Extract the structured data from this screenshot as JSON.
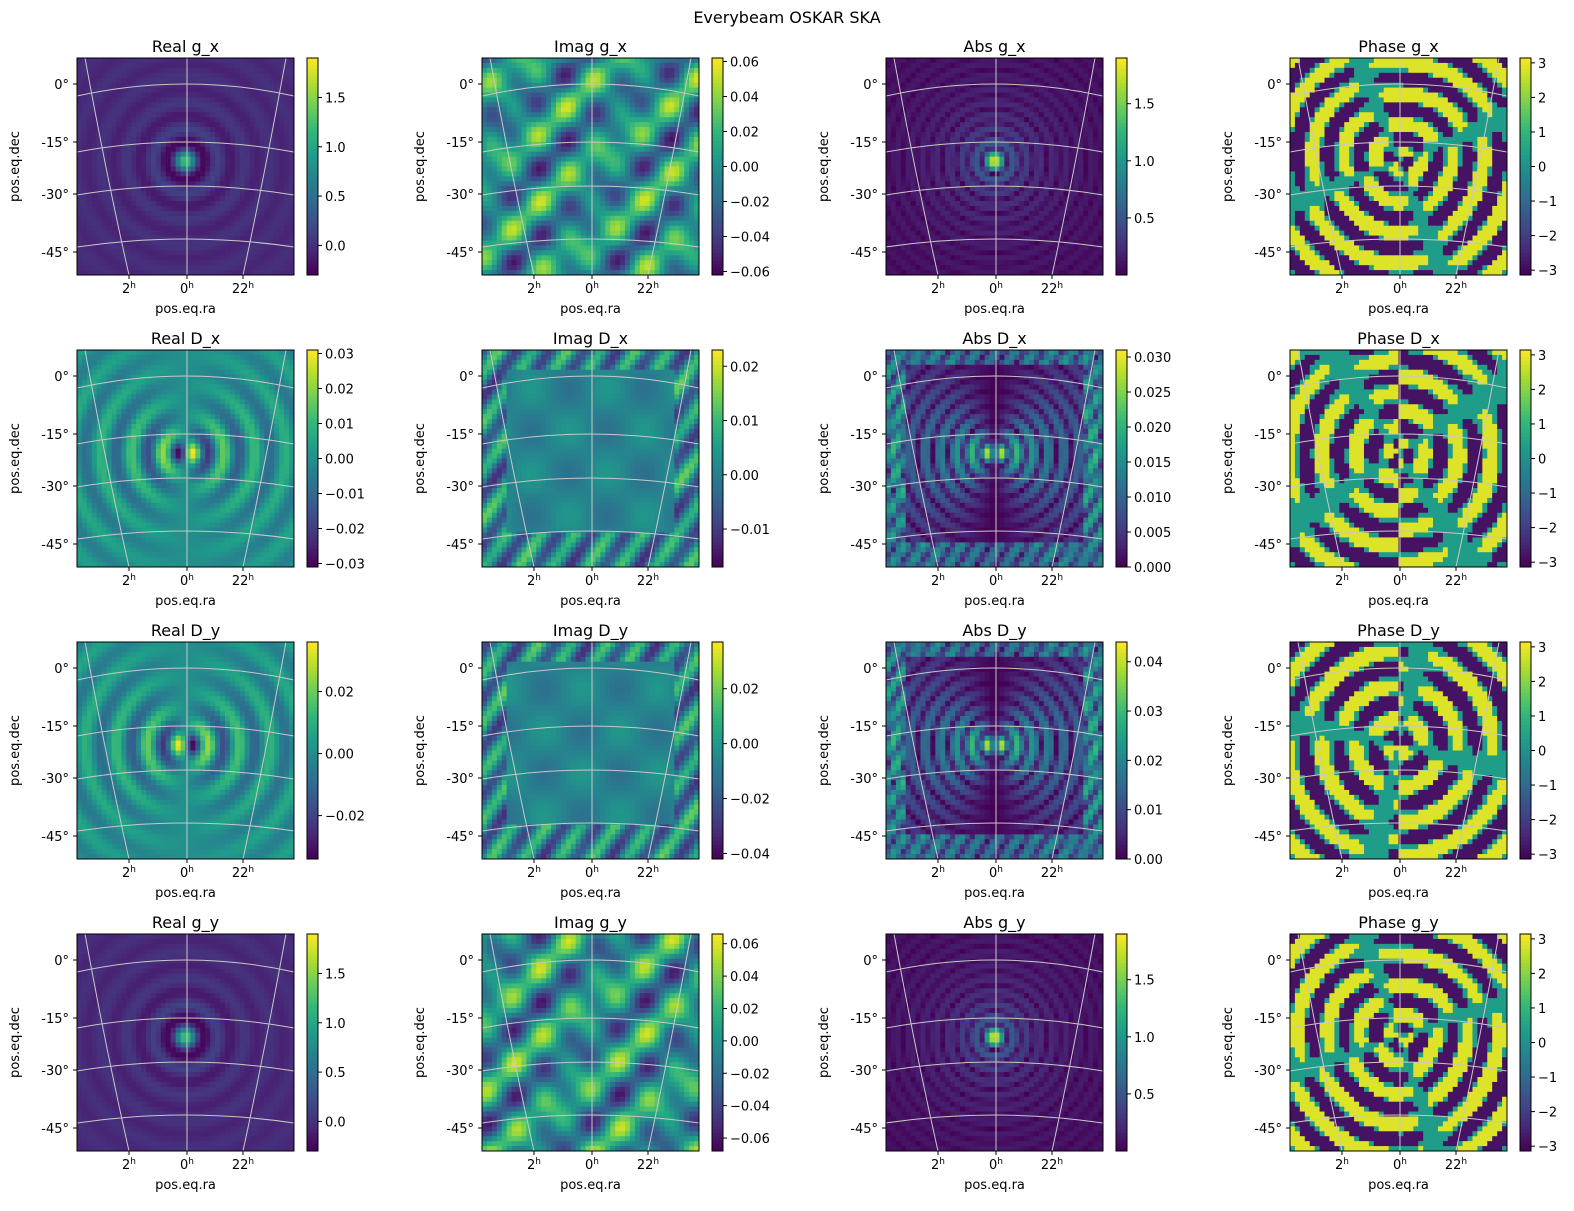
{
  "figure": {
    "title": "Everybeam OSKAR SKA"
  },
  "colormap": [
    "#440154",
    "#482878",
    "#3e4a89",
    "#31688e",
    "#26828e",
    "#1f9e89",
    "#35b779",
    "#6ece58",
    "#b5de2b",
    "#fde725"
  ],
  "chart_data": [
    {
      "type": "heatmap",
      "title": "Real g_x",
      "xlabel": "pos.eq.ra",
      "ylabel": "pos.eq.dec",
      "xticks": [
        "2",
        "0",
        "22"
      ],
      "xtick_unit": "h",
      "yticks": [
        "0°",
        "-15°",
        "-30°",
        "-45°"
      ],
      "cbar_ticks": [
        1.5,
        1.0,
        0.5,
        0.0
      ],
      "cbar_range": [
        -0.3,
        1.9
      ],
      "pattern": "main-lobe"
    },
    {
      "type": "heatmap",
      "title": "Imag g_x",
      "xlabel": "pos.eq.ra",
      "ylabel": "pos.eq.dec",
      "xticks": [
        "2",
        "0",
        "22"
      ],
      "xtick_unit": "h",
      "yticks": [
        "0°",
        "-15°",
        "-30°",
        "-45°"
      ],
      "cbar_ticks": [
        0.06,
        0.04,
        0.02,
        0.0,
        -0.02,
        -0.04,
        -0.06
      ],
      "cbar_range": [
        -0.062,
        0.062
      ],
      "pattern": "blobs"
    },
    {
      "type": "heatmap",
      "title": "Abs g_x",
      "xlabel": "pos.eq.ra",
      "ylabel": "pos.eq.dec",
      "xticks": [
        "2",
        "0",
        "22"
      ],
      "xtick_unit": "h",
      "yticks": [
        "0°",
        "-15°",
        "-30°",
        "-45°"
      ],
      "cbar_ticks": [
        1.5,
        1.0,
        0.5
      ],
      "cbar_range": [
        0.0,
        1.9
      ],
      "pattern": "abs-lobe"
    },
    {
      "type": "heatmap",
      "title": "Phase g_x",
      "xlabel": "pos.eq.ra",
      "ylabel": "pos.eq.dec",
      "xticks": [
        "2",
        "0",
        "22"
      ],
      "xtick_unit": "h",
      "yticks": [
        "0°",
        "-15°",
        "-30°",
        "-45°"
      ],
      "cbar_ticks": [
        3,
        2,
        1,
        0,
        -1,
        -2,
        -3
      ],
      "cbar_range": [
        -3.14,
        3.14
      ],
      "pattern": "phase"
    },
    {
      "type": "heatmap",
      "title": "Real D_x",
      "xlabel": "pos.eq.ra",
      "ylabel": "pos.eq.dec",
      "xticks": [
        "2",
        "0",
        "22"
      ],
      "xtick_unit": "h",
      "yticks": [
        "0°",
        "-15°",
        "-30°",
        "-45°"
      ],
      "cbar_ticks": [
        0.03,
        0.02,
        0.01,
        0.0,
        -0.01,
        -0.02,
        -0.03
      ],
      "cbar_range": [
        -0.031,
        0.031
      ],
      "pattern": "dipole"
    },
    {
      "type": "heatmap",
      "title": "Imag D_x",
      "xlabel": "pos.eq.ra",
      "ylabel": "pos.eq.dec",
      "xticks": [
        "2",
        "0",
        "22"
      ],
      "xtick_unit": "h",
      "yticks": [
        "0°",
        "-15°",
        "-30°",
        "-45°"
      ],
      "cbar_ticks": [
        0.02,
        0.01,
        0.0,
        -0.01
      ],
      "cbar_range": [
        -0.017,
        0.023
      ],
      "pattern": "faint-blobs"
    },
    {
      "type": "heatmap",
      "title": "Abs D_x",
      "xlabel": "pos.eq.ra",
      "ylabel": "pos.eq.dec",
      "xticks": [
        "2",
        "0",
        "22"
      ],
      "xtick_unit": "h",
      "yticks": [
        "0°",
        "-15°",
        "-30°",
        "-45°"
      ],
      "cbar_ticks": [
        0.03,
        0.025,
        0.02,
        0.015,
        0.01,
        0.005,
        0.0
      ],
      "cbar_range": [
        0.0,
        0.031
      ],
      "pattern": "abs-dipole"
    },
    {
      "type": "heatmap",
      "title": "Phase D_x",
      "xlabel": "pos.eq.ra",
      "ylabel": "pos.eq.dec",
      "xticks": [
        "2",
        "0",
        "22"
      ],
      "xtick_unit": "h",
      "yticks": [
        "0°",
        "-15°",
        "-30°",
        "-45°"
      ],
      "cbar_ticks": [
        3,
        2,
        1,
        0,
        -1,
        -2,
        -3
      ],
      "cbar_range": [
        -3.14,
        3.14
      ],
      "pattern": "phase-dipole"
    },
    {
      "type": "heatmap",
      "title": "Real D_y",
      "xlabel": "pos.eq.ra",
      "ylabel": "pos.eq.dec",
      "xticks": [
        "2",
        "0",
        "22"
      ],
      "xtick_unit": "h",
      "yticks": [
        "0°",
        "-15°",
        "-30°",
        "-45°"
      ],
      "cbar_ticks": [
        0.02,
        0.0,
        -0.02
      ],
      "cbar_range": [
        -0.034,
        0.036
      ],
      "pattern": "dipole-neg"
    },
    {
      "type": "heatmap",
      "title": "Imag D_y",
      "xlabel": "pos.eq.ra",
      "ylabel": "pos.eq.dec",
      "xticks": [
        "2",
        "0",
        "22"
      ],
      "xtick_unit": "h",
      "yticks": [
        "0°",
        "-15°",
        "-30°",
        "-45°"
      ],
      "cbar_ticks": [
        0.02,
        0.0,
        -0.02,
        -0.04
      ],
      "cbar_range": [
        -0.042,
        0.037
      ],
      "pattern": "faint-blobs"
    },
    {
      "type": "heatmap",
      "title": "Abs D_y",
      "xlabel": "pos.eq.ra",
      "ylabel": "pos.eq.dec",
      "xticks": [
        "2",
        "0",
        "22"
      ],
      "xtick_unit": "h",
      "yticks": [
        "0°",
        "-15°",
        "-30°",
        "-45°"
      ],
      "cbar_ticks": [
        0.04,
        0.03,
        0.02,
        0.01,
        0.0
      ],
      "cbar_range": [
        0.0,
        0.044
      ],
      "pattern": "abs-dipole"
    },
    {
      "type": "heatmap",
      "title": "Phase D_y",
      "xlabel": "pos.eq.ra",
      "ylabel": "pos.eq.dec",
      "xticks": [
        "2",
        "0",
        "22"
      ],
      "xtick_unit": "h",
      "yticks": [
        "0°",
        "-15°",
        "-30°",
        "-45°"
      ],
      "cbar_ticks": [
        3,
        2,
        1,
        0,
        -1,
        -2,
        -3
      ],
      "cbar_range": [
        -3.14,
        3.14
      ],
      "pattern": "phase-dipole"
    },
    {
      "type": "heatmap",
      "title": "Real g_y",
      "xlabel": "pos.eq.ra",
      "ylabel": "pos.eq.dec",
      "xticks": [
        "2",
        "0",
        "22"
      ],
      "xtick_unit": "h",
      "yticks": [
        "0°",
        "-15°",
        "-30°",
        "-45°"
      ],
      "cbar_ticks": [
        1.5,
        1.0,
        0.5,
        0.0
      ],
      "cbar_range": [
        -0.3,
        1.9
      ],
      "pattern": "main-lobe"
    },
    {
      "type": "heatmap",
      "title": "Imag g_y",
      "xlabel": "pos.eq.ra",
      "ylabel": "pos.eq.dec",
      "xticks": [
        "2",
        "0",
        "22"
      ],
      "xtick_unit": "h",
      "yticks": [
        "0°",
        "-15°",
        "-30°",
        "-45°"
      ],
      "cbar_ticks": [
        0.06,
        0.04,
        0.02,
        0.0,
        -0.02,
        -0.04,
        -0.06
      ],
      "cbar_range": [
        -0.068,
        0.066
      ],
      "pattern": "blobs"
    },
    {
      "type": "heatmap",
      "title": "Abs g_y",
      "xlabel": "pos.eq.ra",
      "ylabel": "pos.eq.dec",
      "xticks": [
        "2",
        "0",
        "22"
      ],
      "xtick_unit": "h",
      "yticks": [
        "0°",
        "-15°",
        "-30°",
        "-45°"
      ],
      "cbar_ticks": [
        1.5,
        1.0,
        0.5
      ],
      "cbar_range": [
        0.0,
        1.9
      ],
      "pattern": "abs-lobe"
    },
    {
      "type": "heatmap",
      "title": "Phase g_y",
      "xlabel": "pos.eq.ra",
      "ylabel": "pos.eq.dec",
      "xticks": [
        "2",
        "0",
        "22"
      ],
      "xtick_unit": "h",
      "yticks": [
        "0°",
        "-15°",
        "-30°",
        "-45°"
      ],
      "cbar_ticks": [
        3,
        2,
        1,
        0,
        -1,
        -2,
        -3
      ],
      "cbar_range": [
        -3.14,
        3.14
      ],
      "pattern": "phase"
    }
  ]
}
